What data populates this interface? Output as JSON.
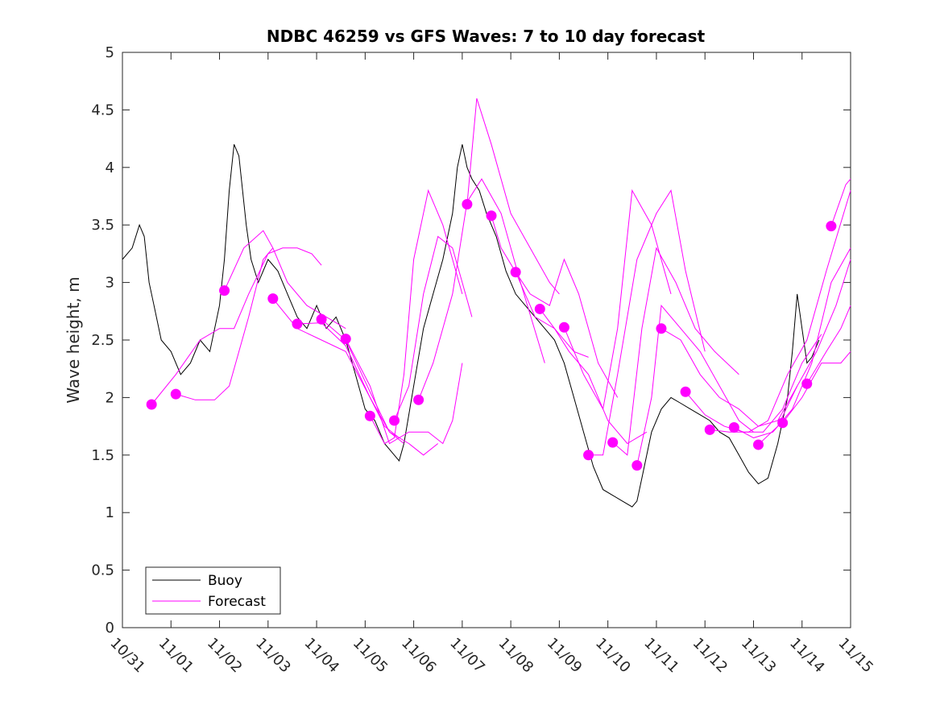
{
  "chart_data": {
    "type": "line",
    "title": "NDBC 46259 vs GFS Waves: 7 to 10 day forecast",
    "xlabel": "",
    "ylabel": "Wave height, m",
    "xlim": [
      0,
      15
    ],
    "ylim": [
      0,
      5
    ],
    "x_tick_values": [
      0,
      1,
      2,
      3,
      4,
      5,
      6,
      7,
      8,
      9,
      10,
      11,
      12,
      13,
      14,
      15
    ],
    "x_tick_labels": [
      "10/31",
      "11/01",
      "11/02",
      "11/03",
      "11/04",
      "11/05",
      "11/06",
      "11/07",
      "11/08",
      "11/09",
      "11/10",
      "11/11",
      "11/12",
      "11/13",
      "11/14",
      "11/15"
    ],
    "y_ticks": [
      0,
      0.5,
      1,
      1.5,
      2,
      2.5,
      3,
      3.5,
      4,
      4.5,
      5
    ],
    "y_tick_labels": [
      "0",
      "0.5",
      "1",
      "1.5",
      "2",
      "2.5",
      "3",
      "3.5",
      "4",
      "4.5",
      "5"
    ],
    "legend": {
      "placement": "bottom-left",
      "entries": [
        {
          "label": "Buoy",
          "color": "#000000"
        },
        {
          "label": "Forecast",
          "color": "#ff00ff"
        }
      ]
    },
    "colors": {
      "buoy": "#000000",
      "forecast": "#ff00ff"
    },
    "series": [
      {
        "name": "Buoy",
        "x": [
          0,
          0.2,
          0.35,
          0.45,
          0.55,
          0.65,
          0.8,
          1.0,
          1.2,
          1.4,
          1.6,
          1.8,
          2.0,
          2.1,
          2.2,
          2.3,
          2.4,
          2.55,
          2.65,
          2.8,
          3.0,
          3.2,
          3.4,
          3.6,
          3.8,
          4.0,
          4.2,
          4.4,
          4.6,
          4.8,
          5.0,
          5.2,
          5.4,
          5.6,
          5.7,
          5.8,
          6.0,
          6.2,
          6.4,
          6.6,
          6.8,
          6.9,
          7.0,
          7.1,
          7.2,
          7.35,
          7.5,
          7.7,
          7.9,
          8.1,
          8.3,
          8.5,
          8.7,
          8.9,
          9.1,
          9.3,
          9.5,
          9.7,
          9.9,
          10.1,
          10.3,
          10.5,
          10.6,
          10.7,
          10.9,
          11.1,
          11.3,
          11.5,
          11.7,
          11.9,
          12.1,
          12.3,
          12.5,
          12.7,
          12.9,
          13.1,
          13.3,
          13.5,
          13.7,
          13.8,
          13.9,
          14.0,
          14.1,
          14.2,
          14.35
        ],
        "y": [
          3.2,
          3.3,
          3.5,
          3.4,
          3.0,
          2.8,
          2.5,
          2.4,
          2.2,
          2.3,
          2.5,
          2.4,
          2.8,
          3.2,
          3.8,
          4.2,
          4.1,
          3.5,
          3.2,
          3.0,
          3.2,
          3.1,
          2.9,
          2.7,
          2.6,
          2.8,
          2.6,
          2.7,
          2.5,
          2.2,
          1.9,
          1.8,
          1.6,
          1.5,
          1.45,
          1.6,
          2.1,
          2.6,
          2.9,
          3.2,
          3.6,
          4.0,
          4.2,
          4.0,
          3.9,
          3.8,
          3.6,
          3.4,
          3.1,
          2.9,
          2.8,
          2.7,
          2.6,
          2.5,
          2.3,
          2.0,
          1.7,
          1.4,
          1.2,
          1.15,
          1.1,
          1.05,
          1.1,
          1.3,
          1.7,
          1.9,
          2.0,
          1.95,
          1.9,
          1.85,
          1.8,
          1.7,
          1.65,
          1.5,
          1.35,
          1.25,
          1.3,
          1.6,
          2.0,
          2.4,
          2.9,
          2.6,
          2.3,
          2.35,
          2.5
        ]
      },
      {
        "name": "Forecast",
        "x": [
          0.6,
          1.1,
          2.1,
          3.1,
          3.6,
          4.1,
          4.6,
          5.1,
          5.6,
          6.1,
          7.1,
          7.6,
          8.1,
          8.6,
          9.1,
          9.6,
          10.1,
          10.6,
          11.1,
          11.6,
          12.1,
          12.6,
          13.1,
          13.6,
          14.1,
          14.6
        ],
        "y": [
          1.94,
          2.03,
          2.93,
          2.86,
          2.64,
          2.68,
          2.51,
          1.84,
          1.8,
          1.98,
          3.68,
          3.58,
          3.09,
          2.77,
          2.61,
          1.5,
          1.61,
          1.41,
          2.6,
          2.05,
          1.72,
          1.74,
          1.59,
          1.78,
          2.12,
          3.49
        ]
      }
    ],
    "forecast_traces": [
      {
        "x": [
          0.6,
          1.1,
          1.6,
          2.0,
          2.3,
          2.6,
          3.0,
          3.3,
          3.6,
          3.9,
          4.1
        ],
        "y": [
          1.94,
          2.2,
          2.5,
          2.6,
          2.6,
          2.9,
          3.25,
          3.3,
          3.3,
          3.25,
          3.15
        ]
      },
      {
        "x": [
          1.1,
          1.5,
          1.9,
          2.2,
          2.6,
          2.9,
          3.1
        ],
        "y": [
          2.03,
          1.98,
          1.98,
          2.1,
          2.7,
          3.2,
          3.3
        ]
      },
      {
        "x": [
          2.1,
          2.5,
          2.9,
          3.1,
          3.4,
          3.8,
          4.2,
          4.6
        ],
        "y": [
          2.93,
          3.3,
          3.45,
          3.3,
          3.0,
          2.8,
          2.7,
          2.6
        ]
      },
      {
        "x": [
          3.1,
          3.6,
          4.1,
          4.6,
          5.1,
          5.5,
          5.8
        ],
        "y": [
          2.86,
          2.6,
          2.5,
          2.4,
          2.0,
          1.7,
          1.6
        ]
      },
      {
        "x": [
          3.6,
          4.1,
          4.6,
          5.1,
          5.4,
          5.7
        ],
        "y": [
          2.64,
          2.65,
          2.45,
          2.0,
          1.75,
          1.65
        ]
      },
      {
        "x": [
          4.1,
          4.6,
          5.1,
          5.5,
          5.9,
          6.2,
          6.5
        ],
        "y": [
          2.68,
          2.5,
          2.05,
          1.7,
          1.6,
          1.5,
          1.6
        ]
      },
      {
        "x": [
          4.6,
          5.1,
          5.5,
          5.9,
          6.3,
          6.6,
          6.8,
          7.0
        ],
        "y": [
          2.51,
          2.1,
          1.6,
          1.7,
          1.7,
          1.6,
          1.8,
          2.3
        ]
      },
      {
        "x": [
          5.1,
          5.4,
          5.6,
          5.8,
          6.0,
          6.3,
          6.6,
          7.0
        ],
        "y": [
          1.84,
          1.6,
          1.65,
          2.2,
          3.2,
          3.8,
          3.5,
          2.9
        ]
      },
      {
        "x": [
          5.6,
          5.9,
          6.2,
          6.5,
          6.8,
          7.0,
          7.2
        ],
        "y": [
          1.8,
          2.1,
          2.9,
          3.4,
          3.3,
          3.0,
          2.7
        ]
      },
      {
        "x": [
          6.1,
          6.4,
          6.8,
          7.1,
          7.4,
          7.8,
          8.2,
          8.7
        ],
        "y": [
          1.98,
          2.3,
          2.9,
          3.7,
          3.9,
          3.6,
          3.0,
          2.3
        ]
      },
      {
        "x": [
          7.1,
          7.3,
          7.6,
          8.0,
          8.4,
          8.8,
          9.0
        ],
        "y": [
          3.68,
          4.6,
          4.2,
          3.6,
          3.3,
          3.0,
          2.9
        ]
      },
      {
        "x": [
          7.6,
          7.8,
          8.1,
          8.5,
          8.9,
          9.3,
          9.6
        ],
        "y": [
          3.58,
          3.3,
          3.09,
          2.7,
          2.6,
          2.4,
          2.35
        ]
      },
      {
        "x": [
          8.1,
          8.4,
          8.8,
          9.1,
          9.4,
          9.8,
          10.2
        ],
        "y": [
          3.09,
          2.9,
          2.8,
          3.2,
          2.9,
          2.3,
          2.0
        ]
      },
      {
        "x": [
          8.6,
          8.9,
          9.2,
          9.6,
          10.0,
          10.4,
          10.8
        ],
        "y": [
          2.77,
          2.6,
          2.4,
          2.2,
          1.8,
          1.6,
          1.7
        ]
      },
      {
        "x": [
          9.1,
          9.5,
          9.9,
          10.2,
          10.5,
          10.9,
          11.3
        ],
        "y": [
          2.61,
          2.2,
          1.9,
          2.6,
          3.8,
          3.5,
          2.9
        ]
      },
      {
        "x": [
          9.6,
          9.9,
          10.2,
          10.6,
          11.0,
          11.3,
          11.6,
          12.0
        ],
        "y": [
          1.5,
          1.5,
          2.2,
          3.2,
          3.6,
          3.8,
          3.1,
          2.4
        ]
      },
      {
        "x": [
          10.1,
          10.4,
          10.7,
          11.0,
          11.4,
          11.8,
          12.2,
          12.7
        ],
        "y": [
          1.61,
          1.5,
          2.6,
          3.3,
          3.0,
          2.6,
          2.4,
          2.2
        ]
      },
      {
        "x": [
          10.6,
          10.9,
          11.1,
          11.5,
          11.9,
          12.3,
          12.7,
          13.0
        ],
        "y": [
          1.41,
          2.0,
          2.8,
          2.6,
          2.4,
          2.1,
          1.8,
          1.7
        ]
      },
      {
        "x": [
          11.1,
          11.5,
          11.9,
          12.3,
          12.7,
          13.1,
          13.5,
          13.9
        ],
        "y": [
          2.6,
          2.5,
          2.2,
          2.0,
          1.9,
          1.75,
          1.8,
          2.1
        ]
      },
      {
        "x": [
          11.6,
          12.0,
          12.4,
          12.8,
          13.2,
          13.6,
          14.0,
          14.4
        ],
        "y": [
          2.05,
          1.85,
          1.75,
          1.7,
          1.7,
          1.9,
          2.3,
          2.55
        ]
      },
      {
        "x": [
          12.1,
          12.5,
          12.9,
          13.3,
          13.7,
          14.1,
          14.5,
          15.0
        ],
        "y": [
          1.72,
          1.7,
          1.7,
          1.8,
          2.2,
          2.5,
          3.1,
          3.8
        ]
      },
      {
        "x": [
          12.6,
          13.0,
          13.4,
          13.8,
          14.2,
          14.6,
          15.0
        ],
        "y": [
          1.74,
          1.65,
          1.7,
          1.9,
          2.3,
          3.0,
          3.3
        ]
      },
      {
        "x": [
          13.1,
          13.5,
          13.9,
          14.3,
          14.7,
          15.0
        ],
        "y": [
          1.59,
          1.75,
          2.1,
          2.4,
          2.8,
          3.2
        ]
      },
      {
        "x": [
          13.6,
          14.0,
          14.4,
          14.8,
          15.0
        ],
        "y": [
          1.78,
          2.0,
          2.3,
          2.3,
          2.4
        ]
      },
      {
        "x": [
          14.1,
          14.5,
          14.8,
          15.0
        ],
        "y": [
          2.12,
          2.4,
          2.6,
          2.8
        ]
      },
      {
        "x": [
          14.6,
          14.9,
          15.0
        ],
        "y": [
          3.49,
          3.85,
          3.9
        ]
      }
    ]
  }
}
